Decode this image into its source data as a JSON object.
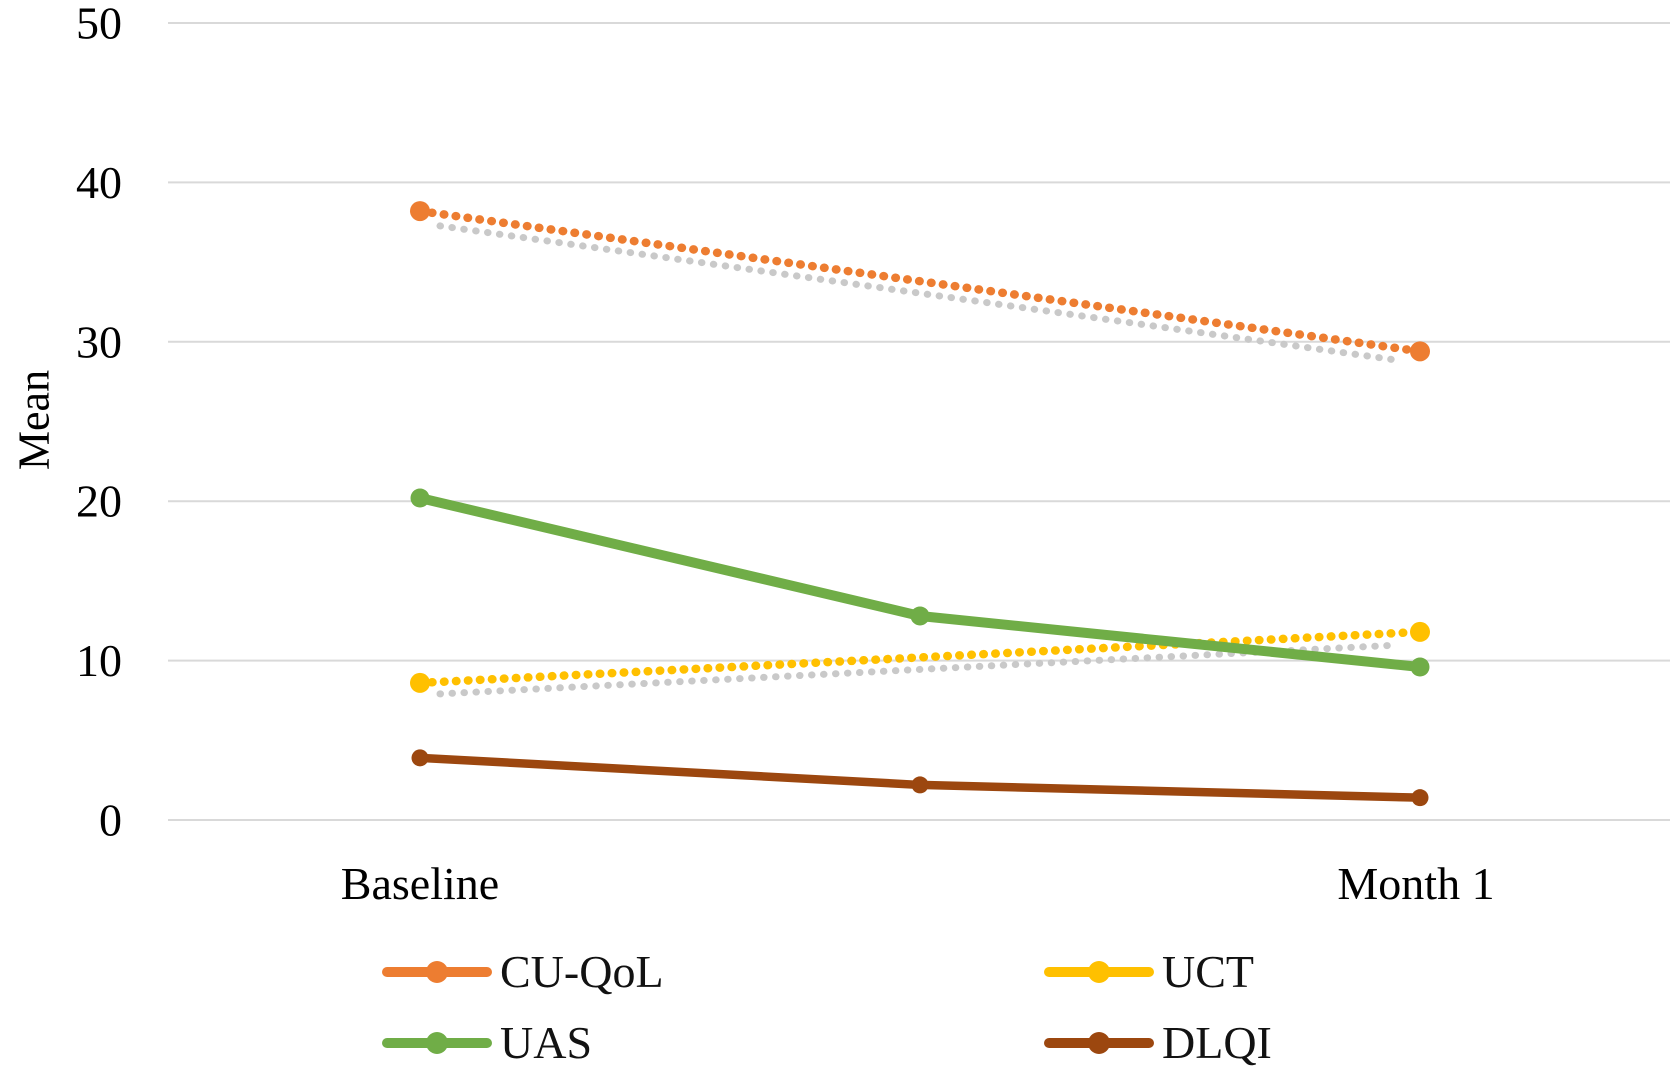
{
  "chart_data": {
    "type": "line",
    "title": "",
    "xlabel": "",
    "ylabel": "Mean",
    "ylim": [
      0,
      50
    ],
    "yticks": [
      0,
      10,
      20,
      30,
      40,
      50
    ],
    "categories": [
      "Baseline",
      "",
      "Month 1"
    ],
    "visible_x_labels": [
      "Baseline",
      "Month 1"
    ],
    "grid": "horizontal",
    "gridline_color": "#D9D9D9",
    "axis_text_color": "#000000",
    "legend_position": "bottom, two columns",
    "series": [
      {
        "name": "CU-QoL",
        "color": "#ED7D31",
        "line_style": "dotted",
        "values": [
          38.2,
          null,
          29.4
        ],
        "trend_shadow": true,
        "shadow_color": "#C9C9C9"
      },
      {
        "name": "UCT",
        "color": "#FFC000",
        "line_style": "dotted",
        "values": [
          8.6,
          null,
          11.8
        ],
        "trend_shadow": true,
        "shadow_color": "#C9C9C9"
      },
      {
        "name": "UAS",
        "color": "#70AD47",
        "line_style": "solid",
        "values": [
          20.2,
          12.8,
          9.6
        ],
        "trend_shadow": false
      },
      {
        "name": "DLQI",
        "color": "#9C470F",
        "line_style": "solid",
        "values": [
          3.9,
          2.2,
          1.4
        ],
        "trend_shadow": false
      }
    ],
    "legend_columns": [
      [
        "CU-QoL",
        "UAS"
      ],
      [
        "UCT",
        "DLQI"
      ]
    ]
  }
}
